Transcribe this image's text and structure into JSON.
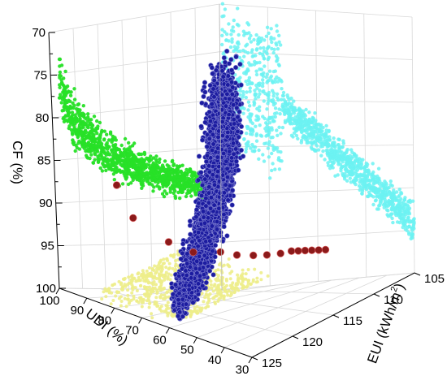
{
  "chart_data": {
    "type": "scatter3d",
    "axes": {
      "x": {
        "label": "UDI (%)",
        "ticks": [
          30,
          40,
          50,
          60,
          70,
          80,
          90,
          100
        ],
        "range": [
          30,
          100
        ]
      },
      "y": {
        "label": "EUI (kWh/m",
        "label_sup": "2",
        "label_close": ")",
        "ticks": [
          105,
          110,
          115,
          120,
          125
        ],
        "range": [
          105,
          125
        ]
      },
      "z": {
        "label": "CF (%)",
        "ticks": [
          70,
          75,
          80,
          85,
          90,
          95,
          100
        ],
        "range": [
          70,
          100
        ],
        "reversed": true
      }
    },
    "grid": true,
    "series": [
      {
        "role": "main-cloud",
        "color": "#1a1a9c",
        "edge": "#8f8fd8",
        "count": 3200,
        "pareto": {
          "udi_range": [
            92,
            56
          ],
          "eui_range": [
            108,
            125
          ],
          "cf_range": [
            81,
            97
          ]
        }
      },
      {
        "role": "pareto-front",
        "color": "#8b1a1a",
        "edge": "#e06060",
        "points": [
          {
            "udi": 88,
            "eui": 122,
            "cf": 88
          },
          {
            "udi": 85,
            "eui": 121,
            "cf": 92
          },
          {
            "udi": 78,
            "eui": 119,
            "cf": 95
          },
          {
            "udi": 72,
            "eui": 118,
            "cf": 96
          },
          {
            "udi": 68,
            "eui": 116,
            "cf": 96.5
          },
          {
            "udi": 65,
            "eui": 115,
            "cf": 97
          },
          {
            "udi": 62,
            "eui": 114,
            "cf": 97.2
          },
          {
            "udi": 60,
            "eui": 113,
            "cf": 97.4
          },
          {
            "udi": 58,
            "eui": 112,
            "cf": 97.5
          },
          {
            "udi": 57,
            "eui": 111,
            "cf": 97.6
          },
          {
            "udi": 56,
            "eui": 110.5,
            "cf": 97.7
          },
          {
            "udi": 55,
            "eui": 110,
            "cf": 97.8
          },
          {
            "udi": 54,
            "eui": 109.5,
            "cf": 97.9
          },
          {
            "udi": 53,
            "eui": 109,
            "cf": 98
          },
          {
            "udi": 52,
            "eui": 108.5,
            "cf": 98.1
          }
        ]
      },
      {
        "role": "projection-udi-cf",
        "color": "#66f2f2",
        "count": 1600
      },
      {
        "role": "projection-eui-cf",
        "color": "#22dd22",
        "count": 1400
      },
      {
        "role": "projection-udi-eui",
        "color": "#eeee88",
        "count": 900
      }
    ]
  }
}
